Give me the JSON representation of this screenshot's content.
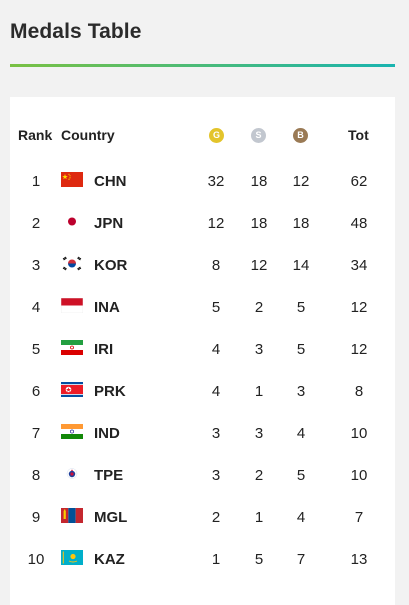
{
  "widget": {
    "title": "Medals Table"
  },
  "table": {
    "headers": {
      "rank": "Rank",
      "country": "Country",
      "gold": "G",
      "silver": "S",
      "bronze": "B",
      "total": "Tot"
    },
    "medal_colors": {
      "gold": "#e3c42b",
      "silver": "#c2c7cf",
      "bronze": "#9a7a55"
    },
    "rows": [
      {
        "rank": "1",
        "code": "CHN",
        "gold": "32",
        "silver": "18",
        "bronze": "12",
        "total": "62",
        "flag": "china-flag-icon"
      },
      {
        "rank": "2",
        "code": "JPN",
        "gold": "12",
        "silver": "18",
        "bronze": "18",
        "total": "48",
        "flag": "japan-flag-icon"
      },
      {
        "rank": "3",
        "code": "KOR",
        "gold": "8",
        "silver": "12",
        "bronze": "14",
        "total": "34",
        "flag": "korea-flag-icon"
      },
      {
        "rank": "4",
        "code": "INA",
        "gold": "5",
        "silver": "2",
        "bronze": "5",
        "total": "12",
        "flag": "indonesia-flag-icon"
      },
      {
        "rank": "5",
        "code": "IRI",
        "gold": "4",
        "silver": "3",
        "bronze": "5",
        "total": "12",
        "flag": "iran-flag-icon"
      },
      {
        "rank": "6",
        "code": "PRK",
        "gold": "4",
        "silver": "1",
        "bronze": "3",
        "total": "8",
        "flag": "north-korea-flag-icon"
      },
      {
        "rank": "7",
        "code": "IND",
        "gold": "3",
        "silver": "3",
        "bronze": "4",
        "total": "10",
        "flag": "india-flag-icon"
      },
      {
        "rank": "8",
        "code": "TPE",
        "gold": "3",
        "silver": "2",
        "bronze": "5",
        "total": "10",
        "flag": "chinese-taipei-flag-icon"
      },
      {
        "rank": "9",
        "code": "MGL",
        "gold": "2",
        "silver": "1",
        "bronze": "4",
        "total": "7",
        "flag": "mongolia-flag-icon"
      },
      {
        "rank": "10",
        "code": "KAZ",
        "gold": "1",
        "silver": "5",
        "bronze": "7",
        "total": "13",
        "flag": "kazakhstan-flag-icon"
      }
    ]
  }
}
